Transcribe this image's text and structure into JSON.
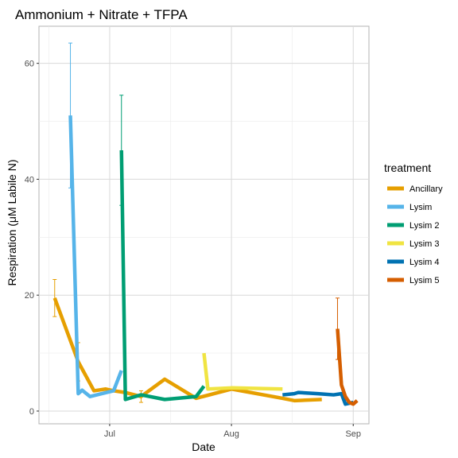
{
  "chart_data": {
    "type": "line",
    "title": "Ammonium + Nitrate + TFPA",
    "xlabel": "Date",
    "ylabel": "Respiration (μM Labile N)",
    "x_ticks": [
      {
        "label": "Jul",
        "date": "2021-07-01"
      },
      {
        "label": "Aug",
        "date": "2021-08-01"
      },
      {
        "label": "Sep",
        "date": "2021-09-01"
      }
    ],
    "y_ticks": [
      0,
      20,
      40,
      60
    ],
    "xlim": [
      "2021-06-13",
      "2021-09-05"
    ],
    "ylim": [
      -2.2,
      66.4
    ],
    "grid": true,
    "legend": {
      "title": "treatment",
      "position": "right"
    },
    "series": [
      {
        "name": "Ancillary",
        "color": "#E69F00",
        "points": [
          {
            "x": "2021-06-17",
            "y": 19.5,
            "err": 3.2
          },
          {
            "x": "2021-06-23",
            "y": 8.5,
            "err": 3.3
          },
          {
            "x": "2021-06-27",
            "y": 3.5
          },
          {
            "x": "2021-06-30",
            "y": 3.8
          },
          {
            "x": "2021-07-02",
            "y": 3.5
          },
          {
            "x": "2021-07-05",
            "y": 3.2
          },
          {
            "x": "2021-07-09",
            "y": 2.5,
            "err": 1.0
          },
          {
            "x": "2021-07-15",
            "y": 5.5
          },
          {
            "x": "2021-07-23",
            "y": 2.2
          },
          {
            "x": "2021-08-01",
            "y": 3.8
          },
          {
            "x": "2021-08-14",
            "y": 2.2
          },
          {
            "x": "2021-08-17",
            "y": 1.8
          },
          {
            "x": "2021-08-24",
            "y": 2.0
          }
        ]
      },
      {
        "name": "Lysim",
        "color": "#56B4E9",
        "points": [
          {
            "x": "2021-06-21",
            "y": 51,
            "err": 12.5
          },
          {
            "x": "2021-06-23",
            "y": 3.0
          },
          {
            "x": "2021-06-24",
            "y": 3.6
          },
          {
            "x": "2021-06-26",
            "y": 2.5
          },
          {
            "x": "2021-07-02",
            "y": 3.5
          },
          {
            "x": "2021-07-04",
            "y": 7.0
          }
        ]
      },
      {
        "name": "Lysim 2",
        "color": "#009E73",
        "points": [
          {
            "x": "2021-07-04",
            "y": 45,
            "err": 9.5
          },
          {
            "x": "2021-07-05",
            "y": 2.0
          },
          {
            "x": "2021-07-09",
            "y": 2.8
          },
          {
            "x": "2021-07-15",
            "y": 2.0
          },
          {
            "x": "2021-07-23",
            "y": 2.5
          },
          {
            "x": "2021-07-25",
            "y": 4.3
          }
        ]
      },
      {
        "name": "Lysim 3",
        "color": "#F0E442",
        "points": [
          {
            "x": "2021-07-25",
            "y": 10.0
          },
          {
            "x": "2021-07-26",
            "y": 3.8
          },
          {
            "x": "2021-08-01",
            "y": 4.0
          },
          {
            "x": "2021-08-14",
            "y": 3.8
          }
        ]
      },
      {
        "name": "Lysim 4",
        "color": "#0072B2",
        "points": [
          {
            "x": "2021-08-14",
            "y": 2.8
          },
          {
            "x": "2021-08-17",
            "y": 3.0
          },
          {
            "x": "2021-08-18",
            "y": 3.2
          },
          {
            "x": "2021-08-23",
            "y": 3.0
          },
          {
            "x": "2021-08-27",
            "y": 2.8
          },
          {
            "x": "2021-08-29",
            "y": 3.0
          },
          {
            "x": "2021-08-30",
            "y": 1.2
          },
          {
            "x": "2021-09-01",
            "y": 1.5
          }
        ]
      },
      {
        "name": "Lysim 5",
        "color": "#D55E00",
        "points": [
          {
            "x": "2021-08-28",
            "y": 14.2,
            "err": 5.3
          },
          {
            "x": "2021-08-29",
            "y": 4.5
          },
          {
            "x": "2021-08-30",
            "y": 2.5
          },
          {
            "x": "2021-08-31",
            "y": 1.5
          },
          {
            "x": "2021-09-01",
            "y": 1.2
          },
          {
            "x": "2021-09-02",
            "y": 1.8
          }
        ]
      }
    ]
  }
}
